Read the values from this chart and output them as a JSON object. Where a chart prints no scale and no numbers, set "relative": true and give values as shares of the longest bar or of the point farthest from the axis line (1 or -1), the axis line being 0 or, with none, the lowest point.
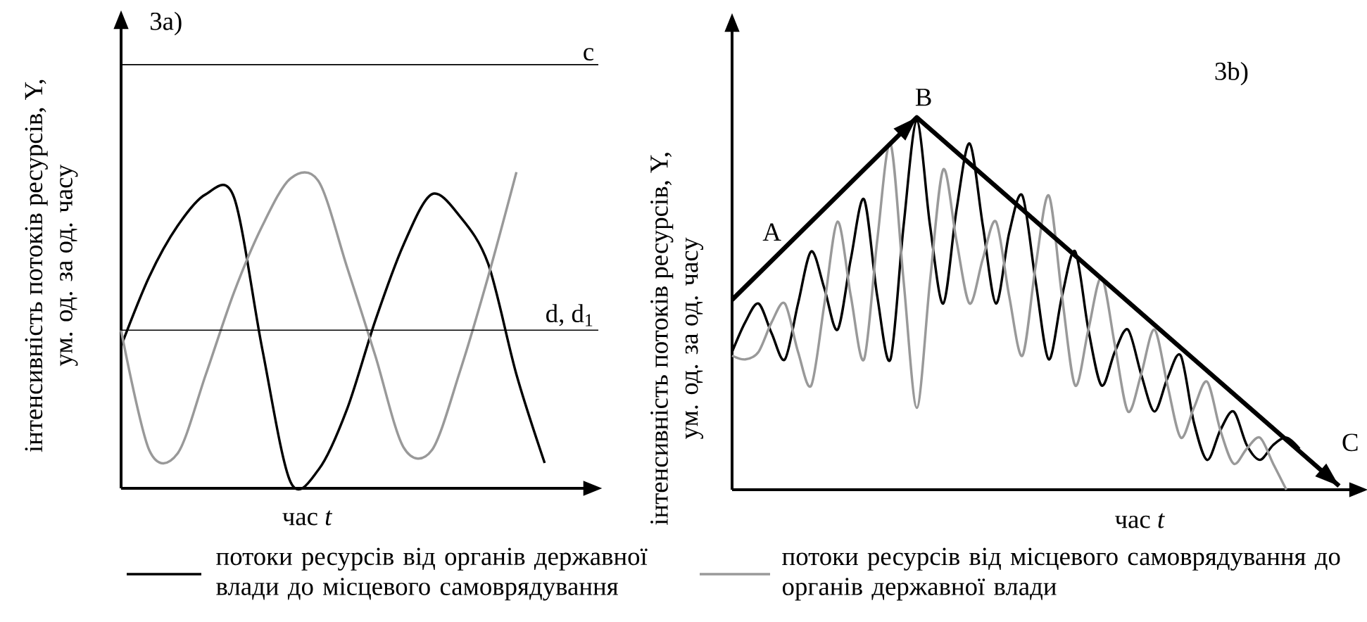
{
  "chart_data": [
    {
      "type": "line",
      "relative": true,
      "title": "3a)",
      "xlabel": "час *t*",
      "ylabel": "інтенсивність потоків ресурсів, Y, ум. од. за од. часу",
      "legend": "bottom",
      "categories": [
        null,
        null,
        null,
        null,
        null,
        null,
        null,
        null,
        null,
        null,
        null,
        null,
        null,
        null,
        null,
        null
      ],
      "series": [
        {
          "name": "потоки ресурсів від органів державної влади до місцевого самоврядування",
          "color": "#000000",
          "values": [
            0.45,
            0.67,
            0.83,
            0.93,
            0.92,
            0.44,
            0.02,
            0.06,
            0.25,
            0.53,
            0.77,
            0.93,
            0.86,
            0.71,
            0.36,
            0.08
          ]
        },
        {
          "name": "потоки ресурсів від місцевого самоврядування до органів державної влади",
          "color": "#999999",
          "values": [
            0.5,
            0.12,
            0.11,
            0.36,
            0.62,
            0.83,
            0.98,
            0.97,
            0.7,
            0.42,
            0.13,
            0.12,
            0.37,
            0.67,
            1.0,
            null
          ]
        }
      ],
      "ref_lines": [
        {
          "axis": "y",
          "value": 1.34,
          "label": "c"
        },
        {
          "axis": "y",
          "value": 0.5,
          "label": "d, d$_{1}$"
        }
      ]
    },
    {
      "type": "line",
      "relative": true,
      "title": "3b)",
      "xlabel": "час *t*",
      "ylabel": "інтенсивність потоків ресурсів, Y, ум. од. за од. часу",
      "categories": [
        null,
        null,
        null,
        null,
        null,
        null,
        null,
        null,
        null,
        null,
        null,
        null,
        null,
        null,
        null,
        null,
        null,
        null,
        null,
        null,
        null,
        null,
        null,
        null,
        null,
        null,
        null,
        null,
        null,
        null,
        null,
        null,
        null,
        null,
        null,
        null,
        null,
        null,
        null,
        null,
        null,
        null,
        null,
        null,
        null,
        null,
        null
      ],
      "series": [
        {
          "color": "#000000",
          "values": [
            0.37,
            0.45,
            0.5,
            0.42,
            0.35,
            0.5,
            0.64,
            0.54,
            0.43,
            0.62,
            0.78,
            0.52,
            0.35,
            0.71,
            0.99,
            0.71,
            0.5,
            0.75,
            0.93,
            0.71,
            0.5,
            0.69,
            0.79,
            0.56,
            0.35,
            0.52,
            0.64,
            0.43,
            0.28,
            0.37,
            0.43,
            0.31,
            0.21,
            0.3,
            0.36,
            0.18,
            0.08,
            0.16,
            0.21,
            0.12,
            0.08,
            0.12,
            0.14,
            0.11,
            null,
            null,
            null
          ]
        },
        {
          "color": "#999999",
          "values": [
            0.36,
            0.35,
            0.37,
            0.45,
            0.5,
            0.37,
            0.28,
            0.5,
            0.72,
            0.52,
            0.35,
            0.67,
            0.93,
            0.56,
            0.22,
            0.56,
            0.86,
            0.67,
            0.5,
            0.62,
            0.72,
            0.52,
            0.36,
            0.6,
            0.79,
            0.52,
            0.28,
            0.43,
            0.57,
            0.39,
            0.21,
            0.31,
            0.43,
            0.28,
            0.14,
            0.22,
            0.29,
            0.16,
            0.07,
            0.11,
            0.14,
            0.07,
            0.0,
            null,
            null,
            null,
            null
          ]
        },
        {
          "color": "#000000",
          "values": [
            0.51,
            null,
            null,
            null,
            null,
            null,
            null,
            null,
            null,
            null,
            null,
            null,
            null,
            null,
            1.0,
            null,
            null,
            null,
            null,
            null,
            null,
            null,
            null,
            null,
            null,
            null,
            null,
            null,
            null,
            null,
            null,
            null,
            null,
            null,
            null,
            null,
            null,
            null,
            null,
            null,
            null,
            null,
            null,
            null,
            null,
            null,
            0.01
          ]
        }
      ],
      "annotations": [
        "A",
        "B",
        "C"
      ]
    }
  ]
}
